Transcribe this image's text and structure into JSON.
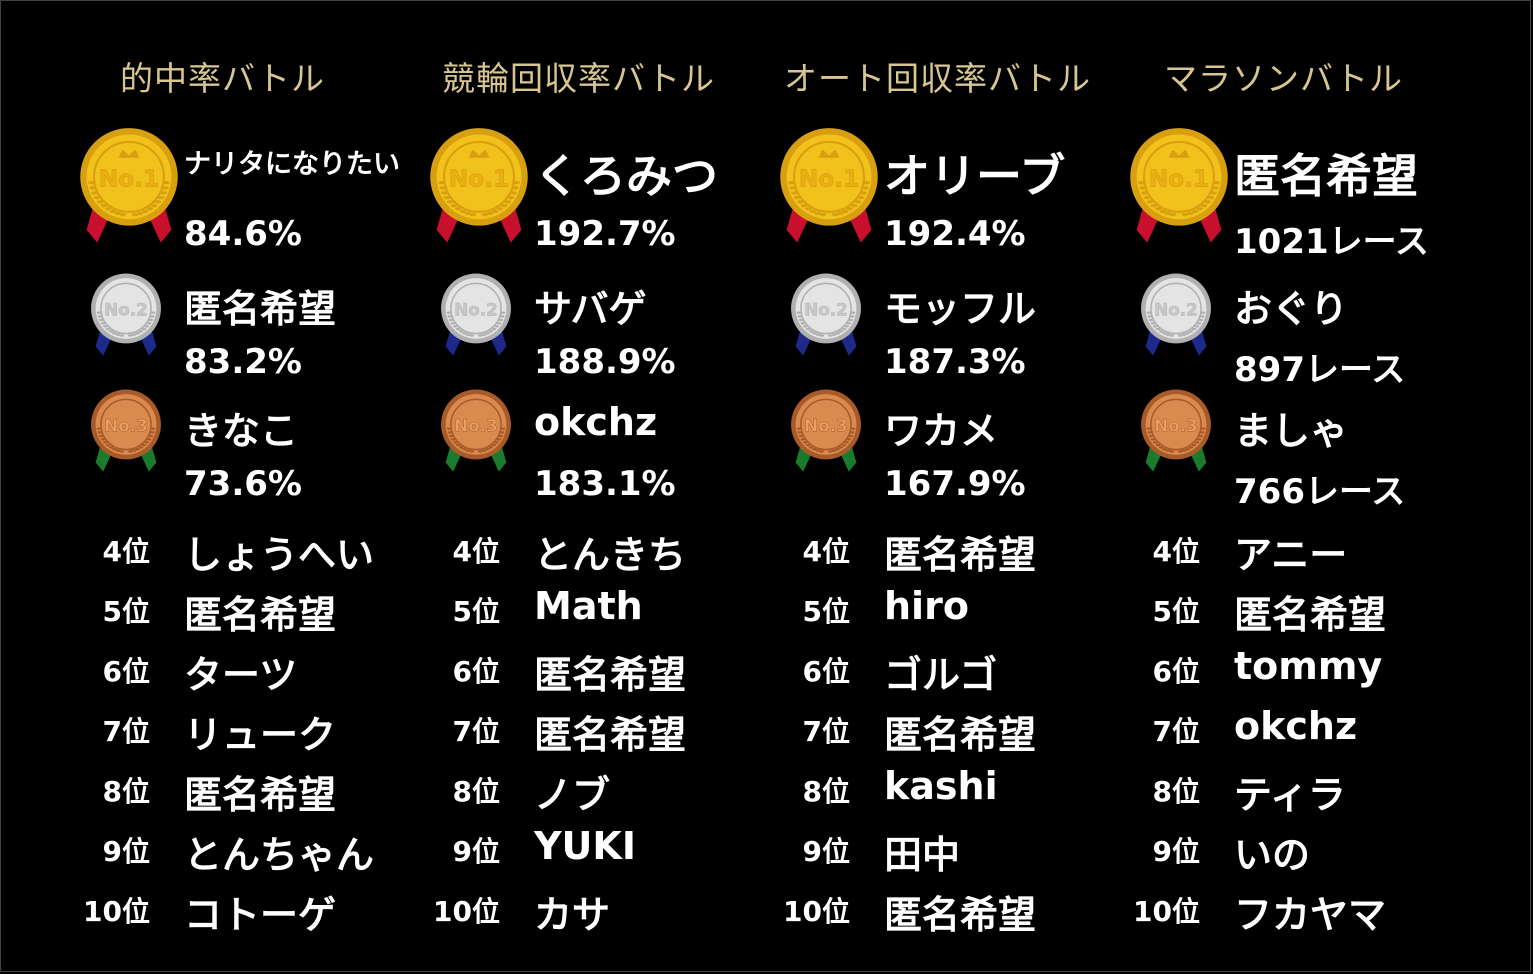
{
  "columns": [
    {
      "title": "的中率バトル",
      "top3": [
        {
          "name": "ナリタになりたい",
          "value": "84.6%"
        },
        {
          "name": "匿名希望",
          "value": "83.2%"
        },
        {
          "name": "きなこ",
          "value": "73.6%"
        }
      ],
      "ranks": [
        {
          "rank": "4位",
          "name": "しょうへい"
        },
        {
          "rank": "5位",
          "name": "匿名希望"
        },
        {
          "rank": "6位",
          "name": "ターツ"
        },
        {
          "rank": "7位",
          "name": "リューク"
        },
        {
          "rank": "8位",
          "name": "匿名希望"
        },
        {
          "rank": "9位",
          "name": "とんちゃん"
        },
        {
          "rank": "10位",
          "name": "コトーゲ"
        }
      ]
    },
    {
      "title": "競輪回収率バトル",
      "top3": [
        {
          "name": "くろみつ",
          "value": "192.7%"
        },
        {
          "name": "サバゲ",
          "value": "188.9%"
        },
        {
          "name": "okchz",
          "value": "183.1%"
        }
      ],
      "ranks": [
        {
          "rank": "4位",
          "name": "とんきち"
        },
        {
          "rank": "5位",
          "name": "Math"
        },
        {
          "rank": "6位",
          "name": "匿名希望"
        },
        {
          "rank": "7位",
          "name": "匿名希望"
        },
        {
          "rank": "8位",
          "name": "ノブ"
        },
        {
          "rank": "9位",
          "name": "YUKI"
        },
        {
          "rank": "10位",
          "name": "カサ"
        }
      ]
    },
    {
      "title": "オート回収率バトル",
      "top3": [
        {
          "name": "オリーブ",
          "value": "192.4%"
        },
        {
          "name": "モッフル",
          "value": "187.3%"
        },
        {
          "name": "ワカメ",
          "value": "167.9%"
        }
      ],
      "ranks": [
        {
          "rank": "4位",
          "name": "匿名希望"
        },
        {
          "rank": "5位",
          "name": "hiro"
        },
        {
          "rank": "6位",
          "name": "ゴルゴ"
        },
        {
          "rank": "7位",
          "name": "匿名希望"
        },
        {
          "rank": "8位",
          "name": "kashi"
        },
        {
          "rank": "9位",
          "name": "田中"
        },
        {
          "rank": "10位",
          "name": "匿名希望"
        }
      ]
    },
    {
      "title": "マラソンバトル",
      "top3": [
        {
          "name": "匿名希望",
          "value": "1021レース"
        },
        {
          "name": "おぐり",
          "value": "897レース"
        },
        {
          "name": "ましゃ",
          "value": "766レース"
        }
      ],
      "ranks": [
        {
          "rank": "4位",
          "name": "アニー"
        },
        {
          "rank": "5位",
          "name": "匿名希望"
        },
        {
          "rank": "6位",
          "name": "tommy"
        },
        {
          "rank": "7位",
          "name": "okchz"
        },
        {
          "rank": "8位",
          "name": "ティラ"
        },
        {
          "rank": "9位",
          "name": "いの"
        },
        {
          "rank": "10位",
          "name": "フカヤマ"
        }
      ]
    }
  ],
  "medals": {
    "gold": {
      "label": "No.1",
      "face": "#f2c21c",
      "rim": "#d8a010",
      "ribbon": "#c8102e",
      "text": "#e8b010"
    },
    "silver": {
      "label": "No.2",
      "face": "#e4e4e4",
      "rim": "#b0b0b0",
      "ribbon": "#1d2a8a",
      "text": "#c8c8c8"
    },
    "bronze": {
      "label": "No.3",
      "face": "#d98a4e",
      "rim": "#a85a28",
      "ribbon": "#1a7a2e",
      "text": "#e8a060"
    }
  }
}
